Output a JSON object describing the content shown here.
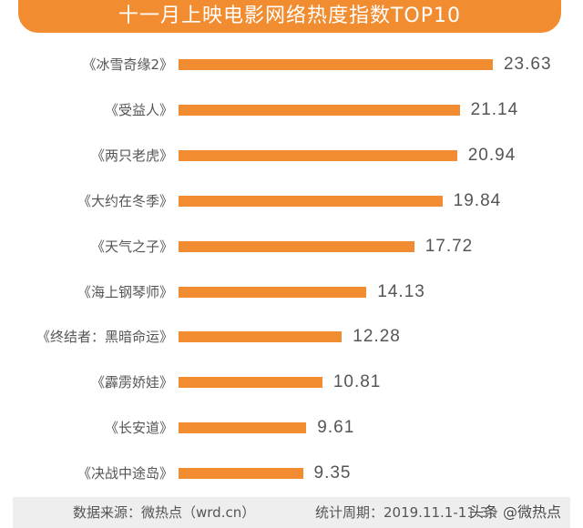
{
  "chart_data": {
    "type": "bar",
    "orientation": "horizontal",
    "title": "十一月上映电影网络热度指数TOP10",
    "categories": [
      "《冰雪奇缘2》",
      "《受益人》",
      "《两只老虎》",
      "《大约在冬季》",
      "《天气之子》",
      "《海上钢琴师》",
      "《终结者：黑暗命运》",
      "《霹雳娇娃》",
      "《长安道》",
      "《决战中途岛》"
    ],
    "values": [
      23.63,
      21.14,
      20.94,
      19.84,
      17.72,
      14.13,
      12.28,
      10.81,
      9.61,
      9.35
    ],
    "value_labels": [
      "23.63",
      "21.14",
      "20.94",
      "19.84",
      "17.72",
      "14.13",
      "12.28",
      "10.81",
      "9.61",
      "9.35"
    ],
    "xlabel": "",
    "ylabel": "",
    "grid": false,
    "legend": null,
    "bar_color": "#f28c30"
  },
  "header": {
    "title": "十一月上映电影网络热度指数TOP10"
  },
  "footer": {
    "source": "数据来源：微热点（wrd.cn）",
    "period": "统计周期：2019.11.1-11.30",
    "watermark": "头条 @微热点"
  },
  "colors": {
    "accent": "#f28c30",
    "text": "#555555",
    "footer_bg": "#eeeeee"
  }
}
